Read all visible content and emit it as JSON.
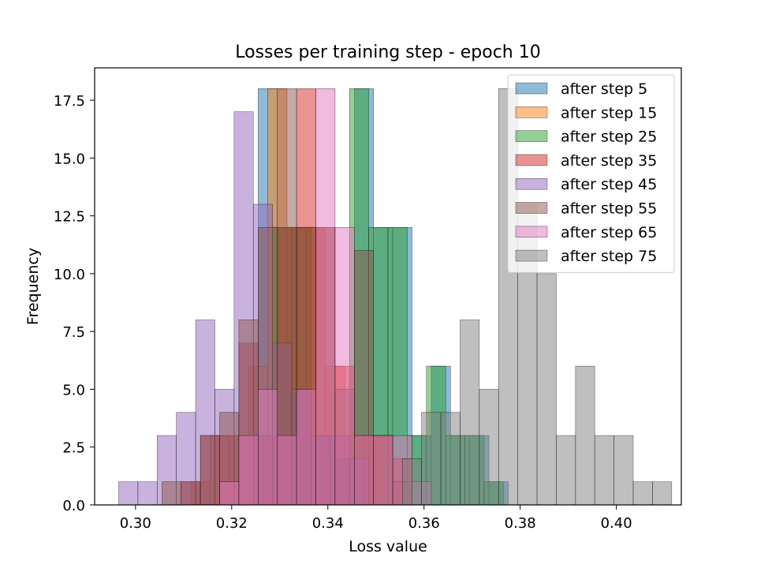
{
  "chart_data": {
    "type": "histogram",
    "title": "Losses per training step - epoch 10",
    "xlabel": "Loss value",
    "ylabel": "Frequency",
    "xlim": [
      0.2915,
      0.4135
    ],
    "ylim": [
      0,
      18.9
    ],
    "xticks": [
      0.3,
      0.32,
      0.34,
      0.36,
      0.38,
      0.4
    ],
    "xtick_labels": [
      "0.30",
      "0.32",
      "0.34",
      "0.36",
      "0.38",
      "0.40"
    ],
    "yticks": [
      0,
      2.5,
      5,
      7.5,
      10,
      12.5,
      15,
      17.5
    ],
    "ytick_labels": [
      "0.0",
      "2.5",
      "5.0",
      "7.5",
      "10.0",
      "12.5",
      "15.0",
      "17.5"
    ],
    "grid": false,
    "legend_position": "top-right",
    "series": [
      {
        "name": "after step 5",
        "color": "#1f77b4",
        "bins": [
          {
            "x0": 0.3255,
            "x1": 0.3295,
            "count": 18
          },
          {
            "x0": 0.3295,
            "x1": 0.3335,
            "count": 12
          },
          {
            "x0": 0.3335,
            "x1": 0.3375,
            "count": 12
          },
          {
            "x0": 0.3375,
            "x1": 0.3415,
            "count": 3
          },
          {
            "x0": 0.3415,
            "x1": 0.3455,
            "count": 2
          },
          {
            "x0": 0.3455,
            "x1": 0.3495,
            "count": 18
          },
          {
            "x0": 0.3495,
            "x1": 0.3535,
            "count": 12
          },
          {
            "x0": 0.3535,
            "x1": 0.3575,
            "count": 12
          },
          {
            "x0": 0.3575,
            "x1": 0.3615,
            "count": 3
          },
          {
            "x0": 0.3615,
            "x1": 0.3655,
            "count": 6
          },
          {
            "x0": 0.3655,
            "x1": 0.3695,
            "count": 3
          },
          {
            "x0": 0.3695,
            "x1": 0.3735,
            "count": 3
          },
          {
            "x0": 0.3735,
            "x1": 0.3775,
            "count": 1
          }
        ]
      },
      {
        "name": "after step 15",
        "color": "#ff7f0e",
        "bins": [
          {
            "x0": 0.3115,
            "x1": 0.3155,
            "count": 1
          },
          {
            "x0": 0.3155,
            "x1": 0.3195,
            "count": 3
          },
          {
            "x0": 0.3195,
            "x1": 0.3235,
            "count": 3
          },
          {
            "x0": 0.3235,
            "x1": 0.3275,
            "count": 6
          },
          {
            "x0": 0.3275,
            "x1": 0.3315,
            "count": 18
          },
          {
            "x0": 0.3315,
            "x1": 0.3355,
            "count": 12
          },
          {
            "x0": 0.3355,
            "x1": 0.3395,
            "count": 12
          },
          {
            "x0": 0.3395,
            "x1": 0.3435,
            "count": 6
          },
          {
            "x0": 0.3435,
            "x1": 0.3475,
            "count": 3
          },
          {
            "x0": 0.3475,
            "x1": 0.3515,
            "count": 3
          }
        ]
      },
      {
        "name": "after step 25",
        "color": "#2ca02c",
        "bins": [
          {
            "x0": 0.3245,
            "x1": 0.3285,
            "count": 3
          },
          {
            "x0": 0.3285,
            "x1": 0.3325,
            "count": 12
          },
          {
            "x0": 0.3325,
            "x1": 0.3365,
            "count": 12
          },
          {
            "x0": 0.3365,
            "x1": 0.3405,
            "count": 3
          },
          {
            "x0": 0.3405,
            "x1": 0.3445,
            "count": 2
          },
          {
            "x0": 0.3445,
            "x1": 0.3485,
            "count": 18
          },
          {
            "x0": 0.3485,
            "x1": 0.3525,
            "count": 12
          },
          {
            "x0": 0.3525,
            "x1": 0.3565,
            "count": 12
          },
          {
            "x0": 0.3565,
            "x1": 0.3605,
            "count": 3
          },
          {
            "x0": 0.3605,
            "x1": 0.3645,
            "count": 6
          },
          {
            "x0": 0.3645,
            "x1": 0.3685,
            "count": 3
          },
          {
            "x0": 0.3685,
            "x1": 0.3725,
            "count": 3
          },
          {
            "x0": 0.3725,
            "x1": 0.3765,
            "count": 1
          }
        ]
      },
      {
        "name": "after step 35",
        "color": "#d62728",
        "bins": [
          {
            "x0": 0.3095,
            "x1": 0.3135,
            "count": 1
          },
          {
            "x0": 0.3135,
            "x1": 0.3175,
            "count": 3
          },
          {
            "x0": 0.3175,
            "x1": 0.3215,
            "count": 3
          },
          {
            "x0": 0.3215,
            "x1": 0.3255,
            "count": 7
          },
          {
            "x0": 0.3255,
            "x1": 0.3295,
            "count": 3
          },
          {
            "x0": 0.3295,
            "x1": 0.3335,
            "count": 12
          },
          {
            "x0": 0.3335,
            "x1": 0.3375,
            "count": 18
          },
          {
            "x0": 0.3375,
            "x1": 0.3415,
            "count": 12
          },
          {
            "x0": 0.3415,
            "x1": 0.3455,
            "count": 6
          },
          {
            "x0": 0.3455,
            "x1": 0.3495,
            "count": 3
          },
          {
            "x0": 0.3495,
            "x1": 0.3535,
            "count": 3
          },
          {
            "x0": 0.3535,
            "x1": 0.3575,
            "count": 2
          }
        ]
      },
      {
        "name": "after step 45",
        "color": "#9467bd",
        "bins": [
          {
            "x0": 0.2965,
            "x1": 0.3005,
            "count": 1
          },
          {
            "x0": 0.3005,
            "x1": 0.3045,
            "count": 1
          },
          {
            "x0": 0.3045,
            "x1": 0.3085,
            "count": 3
          },
          {
            "x0": 0.3085,
            "x1": 0.3125,
            "count": 4
          },
          {
            "x0": 0.3125,
            "x1": 0.3165,
            "count": 8
          },
          {
            "x0": 0.3165,
            "x1": 0.3205,
            "count": 5
          },
          {
            "x0": 0.3205,
            "x1": 0.3245,
            "count": 17
          },
          {
            "x0": 0.3245,
            "x1": 0.3285,
            "count": 13
          },
          {
            "x0": 0.3285,
            "x1": 0.3325,
            "count": 7
          },
          {
            "x0": 0.3325,
            "x1": 0.3365,
            "count": 5
          },
          {
            "x0": 0.3365,
            "x1": 0.3405,
            "count": 3
          },
          {
            "x0": 0.3405,
            "x1": 0.3445,
            "count": 3
          },
          {
            "x0": 0.3445,
            "x1": 0.3485,
            "count": 2
          }
        ]
      },
      {
        "name": "after step 55",
        "color": "#8c564b",
        "bins": [
          {
            "x0": 0.3055,
            "x1": 0.3095,
            "count": 1
          },
          {
            "x0": 0.3095,
            "x1": 0.3135,
            "count": 1
          },
          {
            "x0": 0.3135,
            "x1": 0.3175,
            "count": 3
          },
          {
            "x0": 0.3175,
            "x1": 0.3215,
            "count": 4
          },
          {
            "x0": 0.3215,
            "x1": 0.3255,
            "count": 8
          },
          {
            "x0": 0.3255,
            "x1": 0.3295,
            "count": 12
          },
          {
            "x0": 0.3295,
            "x1": 0.3335,
            "count": 18
          },
          {
            "x0": 0.3335,
            "x1": 0.3375,
            "count": 12
          },
          {
            "x0": 0.3375,
            "x1": 0.3415,
            "count": 12
          },
          {
            "x0": 0.3415,
            "x1": 0.3455,
            "count": 5
          },
          {
            "x0": 0.3455,
            "x1": 0.3495,
            "count": 11
          },
          {
            "x0": 0.3495,
            "x1": 0.3535,
            "count": 3
          },
          {
            "x0": 0.3535,
            "x1": 0.3575,
            "count": 1
          }
        ]
      },
      {
        "name": "after step 65",
        "color": "#e377c2",
        "bins": [
          {
            "x0": 0.3175,
            "x1": 0.3215,
            "count": 1
          },
          {
            "x0": 0.3215,
            "x1": 0.3255,
            "count": 3
          },
          {
            "x0": 0.3255,
            "x1": 0.3295,
            "count": 5
          },
          {
            "x0": 0.3295,
            "x1": 0.3335,
            "count": 3
          },
          {
            "x0": 0.3335,
            "x1": 0.3375,
            "count": 5
          },
          {
            "x0": 0.3375,
            "x1": 0.3415,
            "count": 18
          },
          {
            "x0": 0.3415,
            "x1": 0.3455,
            "count": 12
          },
          {
            "x0": 0.3455,
            "x1": 0.3495,
            "count": 3
          },
          {
            "x0": 0.3495,
            "x1": 0.3535,
            "count": 3
          },
          {
            "x0": 0.3535,
            "x1": 0.3575,
            "count": 3
          },
          {
            "x0": 0.3575,
            "x1": 0.3615,
            "count": 1
          }
        ]
      },
      {
        "name": "after step 75",
        "color": "#7f7f7f",
        "bins": [
          {
            "x0": 0.3555,
            "x1": 0.3595,
            "count": 2
          },
          {
            "x0": 0.3595,
            "x1": 0.3635,
            "count": 4
          },
          {
            "x0": 0.3635,
            "x1": 0.3675,
            "count": 4
          },
          {
            "x0": 0.3675,
            "x1": 0.3715,
            "count": 8
          },
          {
            "x0": 0.3715,
            "x1": 0.3755,
            "count": 5
          },
          {
            "x0": 0.3755,
            "x1": 0.3795,
            "count": 18
          },
          {
            "x0": 0.3795,
            "x1": 0.3835,
            "count": 13
          },
          {
            "x0": 0.3835,
            "x1": 0.3875,
            "count": 10
          },
          {
            "x0": 0.3875,
            "x1": 0.3915,
            "count": 3
          },
          {
            "x0": 0.3915,
            "x1": 0.3955,
            "count": 6
          },
          {
            "x0": 0.3955,
            "x1": 0.3995,
            "count": 3
          },
          {
            "x0": 0.3995,
            "x1": 0.4035,
            "count": 3
          },
          {
            "x0": 0.4035,
            "x1": 0.4075,
            "count": 1
          },
          {
            "x0": 0.4075,
            "x1": 0.4115,
            "count": 1
          }
        ]
      }
    ]
  }
}
